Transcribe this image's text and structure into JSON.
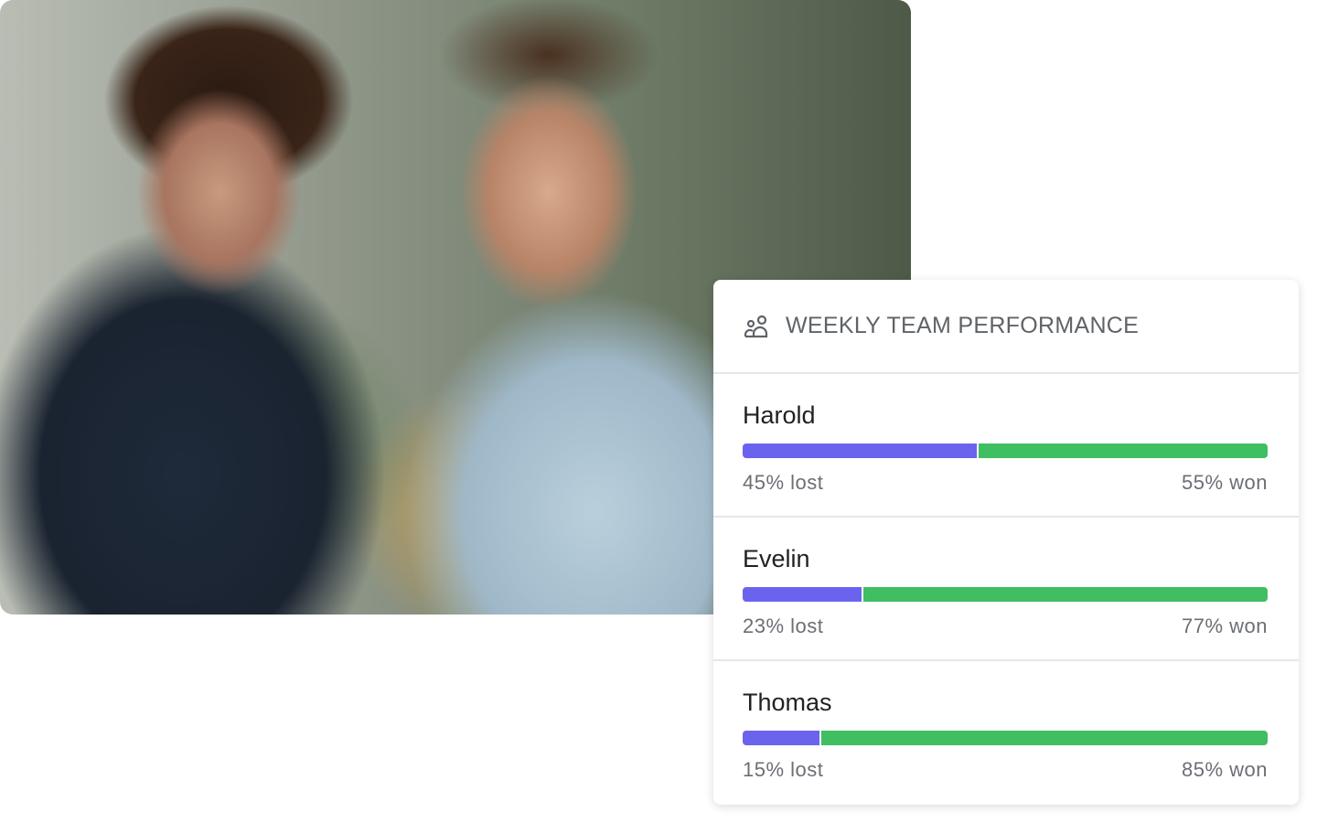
{
  "card": {
    "title": "WEEKLY TEAM PERFORMANCE",
    "icon": "users-icon",
    "colors": {
      "lost": "#6b63ee",
      "won": "#3fbe62"
    },
    "members": [
      {
        "name": "Harold",
        "lost_pct": 45,
        "won_pct": 55,
        "lost_label": "45% lost",
        "won_label": "55% won"
      },
      {
        "name": "Evelin",
        "lost_pct": 23,
        "won_pct": 77,
        "lost_label": "23% lost",
        "won_label": "77% won"
      },
      {
        "name": "Thomas",
        "lost_pct": 15,
        "won_pct": 85,
        "lost_label": "15% lost",
        "won_label": "85% won"
      }
    ]
  }
}
